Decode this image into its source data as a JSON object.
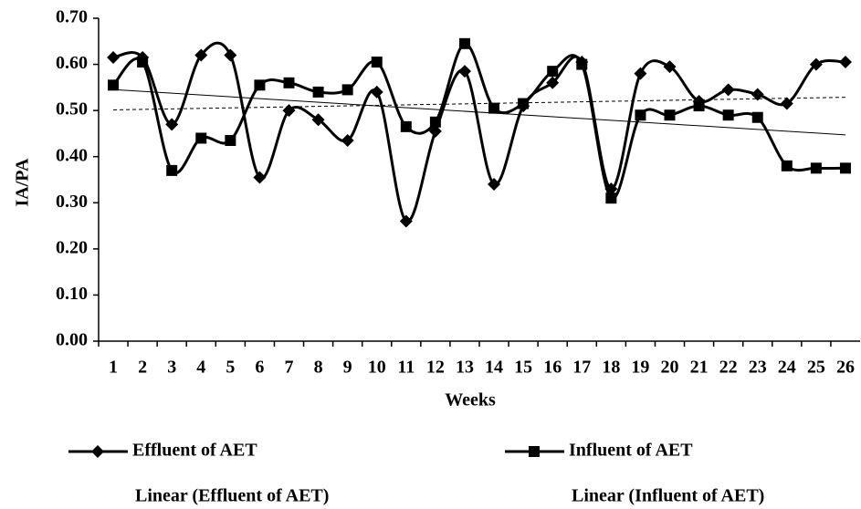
{
  "chart_data": {
    "type": "line",
    "x_label": "Weeks",
    "y_label": "IA/PA",
    "categories": [
      "1",
      "2",
      "3",
      "4",
      "5",
      "6",
      "7",
      "8",
      "9",
      "10",
      "11",
      "12",
      "13",
      "14",
      "15",
      "16",
      "17",
      "18",
      "19",
      "20",
      "21",
      "22",
      "23",
      "24",
      "25",
      "26"
    ],
    "series": [
      {
        "name": "Effluent of AET",
        "color": "#000000",
        "marker": "diamond",
        "trend_name": "Linear (Effluent of AET)",
        "trend_style": "dashed",
        "values": [
          0.615,
          0.615,
          0.47,
          0.62,
          0.62,
          0.355,
          0.5,
          0.48,
          0.435,
          0.54,
          0.26,
          0.455,
          0.585,
          0.34,
          0.51,
          0.56,
          0.605,
          0.33,
          0.58,
          0.595,
          0.52,
          0.545,
          0.535,
          0.515,
          0.6,
          0.605
        ]
      },
      {
        "name": "Influent of AET",
        "color": "#000000",
        "marker": "square",
        "trend_name": "Linear (Influent of AET)",
        "trend_style": "solid",
        "values": [
          0.555,
          0.605,
          0.37,
          0.44,
          0.435,
          0.555,
          0.56,
          0.54,
          0.545,
          0.605,
          0.465,
          0.475,
          0.645,
          0.505,
          0.515,
          0.585,
          0.6,
          0.31,
          0.49,
          0.49,
          0.51,
          0.49,
          0.485,
          0.38,
          0.375,
          0.375
        ]
      }
    ],
    "ylim": [
      0,
      0.7
    ],
    "yticks": [
      {
        "value": 0,
        "label": "0.00"
      },
      {
        "value": 0.1,
        "label": "0.10"
      },
      {
        "value": 0.2,
        "label": "0.20"
      },
      {
        "value": 0.3,
        "label": "0.30"
      },
      {
        "value": 0.4,
        "label": "0.40"
      },
      {
        "value": 0.5,
        "label": "0.50"
      },
      {
        "value": 0.6,
        "label": "0.60"
      },
      {
        "value": 0.7,
        "label": "0.70"
      }
    ],
    "grid": false
  }
}
